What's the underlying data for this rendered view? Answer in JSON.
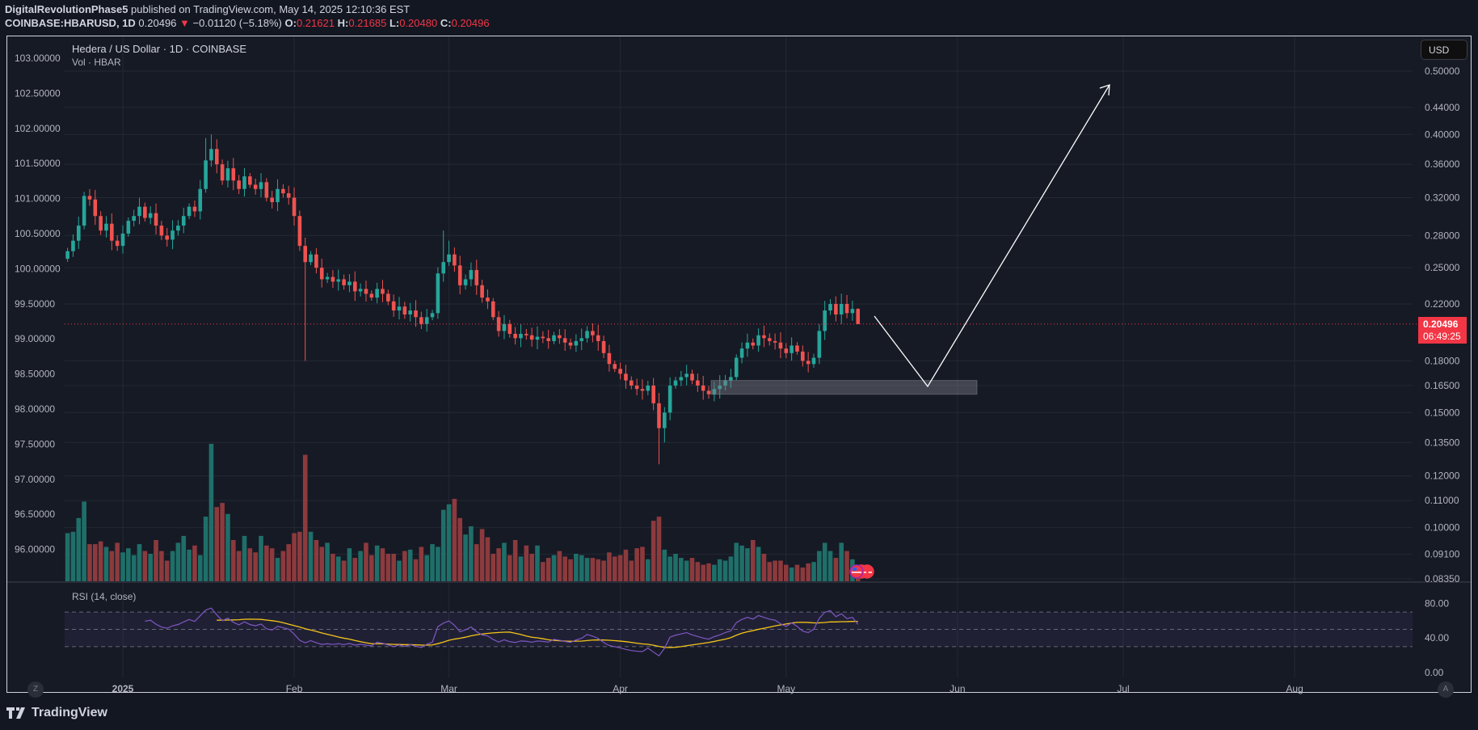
{
  "header": {
    "author": "DigitalRevolutionPhase5",
    "published": " published on TradingView.com, May 14, 2025 12:10:36 EST",
    "symbol": "COINBASE:HBARUSD, 1D",
    "last": "0.20496",
    "change_arrow": "▼",
    "change": "−0.01120 (−5.18%)",
    "o_label": "O:",
    "o": "0.21621",
    "h_label": "H:",
    "h": "0.21685",
    "l_label": "L:",
    "l": "0.20480",
    "c_label": "C:",
    "c": "0.20496"
  },
  "legend": {
    "title": "Hedera / US Dollar · 1D · COINBASE",
    "volume": "Vol · HBAR",
    "rsi": "RSI (14, close)"
  },
  "currency_button": "USD",
  "price_tag": {
    "price": "0.20496",
    "countdown": "06:49:25"
  },
  "buttons": {
    "z": "Z",
    "a": "A"
  },
  "footer": {
    "brand": "TradingView"
  },
  "colors": {
    "up": "#26a69a",
    "down": "#ef5350",
    "vol_up": "#1f6f69",
    "vol_down": "#8c3a3d",
    "rsi": "#7e57c2",
    "rsi_ma": "#f5c518",
    "price_line": "#f23645"
  },
  "chart_data": {
    "type": "candlestick",
    "start_date": "2024-12-22",
    "interval": "1D",
    "right_axis_ticks": [
      "0.50000",
      "0.44000",
      "0.40000",
      "0.36000",
      "0.32000",
      "0.28000",
      "0.25000",
      "0.22000",
      "0.18000",
      "0.16500",
      "0.15000",
      "0.13500",
      "0.12000",
      "0.11000",
      "0.10000",
      "0.09100",
      "0.08350"
    ],
    "left_axis_ticks": [
      "103.00000",
      "102.50000",
      "102.00000",
      "101.50000",
      "101.00000",
      "100.50000",
      "100.00000",
      "99.50000",
      "99.00000",
      "98.50000",
      "98.00000",
      "97.50000",
      "97.00000",
      "96.50000",
      "96.00000"
    ],
    "rsi_axis_ticks": [
      "80.00",
      "40.00",
      "0.00"
    ],
    "time_ticks": [
      {
        "label": "2025",
        "day": 10
      },
      {
        "label": "Feb",
        "day": 41
      },
      {
        "label": "Mar",
        "day": 69
      },
      {
        "label": "Apr",
        "day": 100
      },
      {
        "label": "May",
        "day": 130
      },
      {
        "label": "Jun",
        "day": 161
      },
      {
        "label": "Jul",
        "day": 191
      },
      {
        "label": "Aug",
        "day": 222
      }
    ],
    "first_open": 0.258,
    "closes": [
      0.265,
      0.275,
      0.29,
      0.322,
      0.318,
      0.3,
      0.285,
      0.292,
      0.275,
      0.27,
      0.282,
      0.295,
      0.3,
      0.31,
      0.298,
      0.303,
      0.29,
      0.28,
      0.276,
      0.285,
      0.29,
      0.3,
      0.31,
      0.305,
      0.33,
      0.365,
      0.38,
      0.36,
      0.34,
      0.355,
      0.34,
      0.33,
      0.345,
      0.335,
      0.33,
      0.338,
      0.32,
      0.315,
      0.33,
      0.325,
      0.32,
      0.3,
      0.27,
      0.255,
      0.262,
      0.25,
      0.24,
      0.242,
      0.238,
      0.24,
      0.235,
      0.238,
      0.23,
      0.232,
      0.228,
      0.225,
      0.232,
      0.228,
      0.222,
      0.215,
      0.218,
      0.212,
      0.215,
      0.21,
      0.205,
      0.21,
      0.213,
      0.245,
      0.255,
      0.262,
      0.252,
      0.235,
      0.24,
      0.248,
      0.235,
      0.225,
      0.222,
      0.21,
      0.2,
      0.205,
      0.198,
      0.195,
      0.198,
      0.197,
      0.194,
      0.196,
      0.195,
      0.193,
      0.197,
      0.195,
      0.192,
      0.19,
      0.193,
      0.195,
      0.2,
      0.197,
      0.193,
      0.185,
      0.178,
      0.175,
      0.172,
      0.168,
      0.165,
      0.163,
      0.162,
      0.165,
      0.155,
      0.142,
      0.15,
      0.165,
      0.168,
      0.17,
      0.172,
      0.168,
      0.165,
      0.162,
      0.16,
      0.163,
      0.165,
      0.168,
      0.17,
      0.182,
      0.188,
      0.192,
      0.19,
      0.197,
      0.195,
      0.193,
      0.192,
      0.188,
      0.185,
      0.19,
      0.186,
      0.18,
      0.178,
      0.182,
      0.2,
      0.215,
      0.22,
      0.212,
      0.22,
      0.213,
      0.2162,
      0.20496
    ],
    "wick_overrides": {
      "25": {
        "h": 0.395
      },
      "26": {
        "h": 0.4
      },
      "43": {
        "l": 0.18
      },
      "68": {
        "h": 0.285
      },
      "69": {
        "h": 0.275
      },
      "107": {
        "l": 0.125
      },
      "108": {
        "l": 0.135
      },
      "141": {
        "h": 0.227
      },
      "143": {
        "h": 0.21685,
        "l": 0.2048
      }
    },
    "volumes_relative": [
      35,
      36,
      46,
      58,
      27,
      27,
      29,
      25,
      22,
      28,
      21,
      24,
      19,
      27,
      22,
      20,
      30,
      22,
      15,
      22,
      28,
      33,
      23,
      26,
      19,
      47,
      100,
      54,
      57,
      49,
      30,
      22,
      33,
      24,
      21,
      33,
      26,
      24,
      17,
      22,
      27,
      35,
      36,
      92,
      36,
      30,
      25,
      28,
      20,
      18,
      15,
      24,
      17,
      22,
      28,
      19,
      26,
      24,
      20,
      20,
      15,
      22,
      23,
      16,
      25,
      19,
      27,
      25,
      52,
      56,
      60,
      46,
      34,
      40,
      27,
      38,
      32,
      20,
      24,
      28,
      19,
      30,
      18,
      26,
      20,
      26,
      14,
      17,
      19,
      22,
      18,
      16,
      20,
      19,
      17,
      17,
      16,
      15,
      21,
      18,
      19,
      23,
      15,
      24,
      25,
      16,
      44,
      47,
      23,
      18,
      20,
      17,
      15,
      17,
      14,
      12,
      13,
      12,
      16,
      15,
      18,
      28,
      26,
      24,
      30,
      25,
      20,
      14,
      15,
      15,
      12,
      10,
      12,
      10,
      13,
      14,
      22,
      28,
      22,
      17,
      28,
      22,
      16,
      8
    ],
    "rsi_period": 14,
    "rsi_ma_period": 14,
    "rsi_bands": [
      70,
      30
    ],
    "drawings": {
      "projection_path": "down to ~0.165 support then up to ~0.48",
      "support_zone": [
        0.16,
        0.168
      ]
    }
  }
}
